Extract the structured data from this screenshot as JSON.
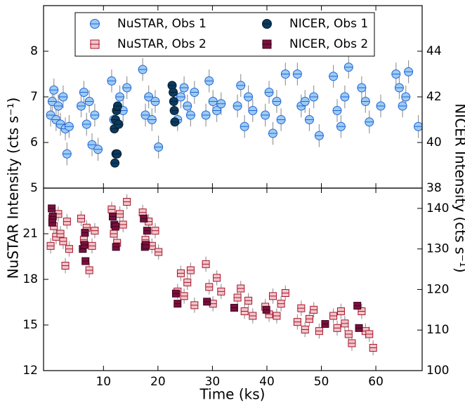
{
  "chart_data": [
    {
      "type": "scatter",
      "y_label": "NuSTAR Intensity (cts s⁻¹)",
      "y2_label": "NICER Intensity (cts s⁻¹)",
      "xlim": [
        -1,
        68.5
      ],
      "xticks": [
        10,
        20,
        30,
        40,
        50,
        60
      ],
      "ylim": [
        5,
        9
      ],
      "yticks": [
        5,
        6,
        7,
        8
      ],
      "y2lim": [
        38,
        46
      ],
      "y2ticks": [
        38,
        40,
        42,
        44
      ],
      "legend": "upper center",
      "series": [
        {
          "name": "NuSTAR, Obs 1",
          "marker": "circle",
          "color": "#9ecbf4",
          "edgecolor": "#1f66d6",
          "yerr": 0.25,
          "x": [
            0.3,
            0.6,
            0.9,
            1.3,
            1.7,
            2.1,
            2.6,
            3.0,
            3.3,
            3.7,
            5.9,
            6.4,
            6.9,
            7.4,
            7.9,
            8.4,
            9.0,
            11.5,
            11.9,
            13.0,
            13.6,
            14.3,
            17.2,
            17.7,
            18.3,
            18.9,
            19.5,
            20.1,
            23.6,
            24.2,
            24.8,
            25.4,
            26.0,
            26.7,
            28.8,
            29.4,
            30.1,
            30.8,
            31.6,
            34.6,
            35.2,
            35.9,
            36.6,
            37.4,
            39.7,
            40.4,
            41.1,
            41.8,
            42.6,
            43.4,
            45.6,
            46.3,
            47.0,
            47.8,
            48.6,
            49.6,
            52.2,
            52.9,
            53.6,
            54.3,
            55.0,
            57.4,
            58.1,
            58.8,
            60.9,
            63.7,
            64.3,
            64.9,
            65.5,
            66.0,
            67.8
          ],
          "values": [
            6.6,
            6.9,
            7.15,
            6.5,
            6.8,
            6.4,
            7.0,
            6.3,
            5.75,
            6.35,
            6.8,
            7.1,
            6.4,
            6.9,
            5.95,
            6.6,
            5.85,
            7.35,
            6.5,
            7.0,
            6.7,
            7.2,
            7.6,
            6.6,
            7.0,
            6.5,
            6.9,
            5.9,
            6.5,
            7.0,
            7.2,
            6.8,
            6.6,
            7.1,
            6.6,
            7.35,
            6.9,
            6.7,
            6.85,
            6.8,
            7.25,
            6.35,
            7.0,
            6.7,
            6.6,
            7.1,
            6.2,
            6.9,
            6.5,
            7.5,
            7.5,
            6.8,
            6.9,
            6.5,
            7.0,
            6.15,
            7.45,
            6.7,
            6.35,
            7.0,
            7.65,
            7.2,
            6.9,
            6.45,
            6.8,
            7.5,
            7.2,
            6.8,
            7.0,
            7.55,
            6.35
          ]
        },
        {
          "name": "NICER, Obs 1",
          "marker": "circle",
          "color": "#0b3a5e",
          "edgecolor": "#061f33",
          "axis": "y2",
          "x": [
            12.0,
            12.2,
            12.4,
            12.6,
            12.8,
            12.1,
            12.3,
            12.5,
            22.6,
            22.8,
            22.9,
            23.0,
            23.1
          ],
          "values": [
            40.6,
            41.0,
            41.4,
            41.6,
            40.8,
            39.1,
            39.5,
            39.5,
            42.5,
            42.2,
            41.8,
            41.4,
            40.9
          ]
        }
      ]
    },
    {
      "type": "scatter",
      "x_label": "Time (ks)",
      "xlim": [
        -1,
        68.5
      ],
      "xticks": [
        10,
        20,
        30,
        40,
        50,
        60
      ],
      "ylim": [
        12,
        24
      ],
      "yticks": [
        12,
        15,
        18,
        21
      ],
      "y2lim": [
        100,
        145
      ],
      "y2ticks": [
        100,
        110,
        120,
        130,
        140
      ],
      "series": [
        {
          "name": "NuSTAR, Obs 2",
          "marker": "square",
          "color": "#f4c6ca",
          "edgecolor": "#a3142b",
          "yerr": 0.5,
          "x": [
            0.3,
            0.6,
            0.9,
            1.3,
            1.7,
            2.1,
            2.6,
            3.0,
            3.3,
            3.7,
            5.9,
            6.4,
            6.9,
            7.4,
            7.9,
            8.4,
            11.5,
            11.9,
            12.5,
            13.0,
            13.6,
            14.3,
            17.2,
            17.7,
            18.3,
            18.9,
            19.5,
            20.1,
            23.6,
            24.2,
            24.8,
            25.4,
            26.0,
            26.7,
            28.8,
            29.4,
            30.1,
            30.8,
            31.6,
            34.6,
            35.2,
            35.9,
            36.6,
            37.4,
            39.7,
            40.4,
            41.1,
            41.8,
            42.6,
            43.4,
            45.6,
            46.3,
            47.0,
            47.8,
            48.6,
            49.6,
            52.2,
            52.9,
            53.6,
            54.3,
            55.0,
            55.6,
            57.4,
            58.1,
            58.8,
            59.5
          ],
          "values": [
            20.2,
            22.0,
            21.5,
            20.8,
            22.3,
            21.0,
            20.5,
            18.9,
            21.8,
            20.0,
            22.0,
            20.6,
            21.4,
            18.6,
            20.2,
            21.2,
            22.6,
            21.0,
            20.4,
            22.3,
            21.6,
            23.1,
            22.4,
            20.6,
            21.8,
            20.2,
            21.2,
            19.8,
            17.2,
            18.4,
            16.9,
            17.8,
            18.6,
            16.3,
            19.0,
            17.5,
            16.4,
            18.1,
            17.2,
            16.8,
            17.4,
            15.9,
            16.6,
            15.6,
            16.2,
            15.7,
            16.9,
            15.6,
            16.4,
            17.1,
            15.2,
            16.1,
            14.7,
            15.4,
            16.0,
            14.6,
            15.6,
            14.8,
            15.9,
            15.1,
            14.4,
            13.8,
            15.9,
            14.6,
            14.4,
            13.5
          ]
        },
        {
          "name": "NICER, Obs 2",
          "marker": "square",
          "color": "#7b0f3d",
          "edgecolor": "#3d0520",
          "axis": "y2",
          "x": [
            0.5,
            0.7,
            0.6,
            6.2,
            6.5,
            6.7,
            6.6,
            11.7,
            12.0,
            12.2,
            12.3,
            17.4,
            17.6,
            17.8,
            18.0,
            23.3,
            23.6,
            29.0,
            34.0,
            39.9,
            50.7,
            56.6,
            56.9
          ],
          "values": [
            140,
            138,
            136.5,
            130,
            131,
            127,
            134,
            138,
            136,
            135.5,
            130.5,
            137.5,
            130.5,
            131,
            134.5,
            119,
            116.5,
            117,
            115.5,
            115,
            111.5,
            116,
            110.5
          ]
        }
      ]
    }
  ]
}
